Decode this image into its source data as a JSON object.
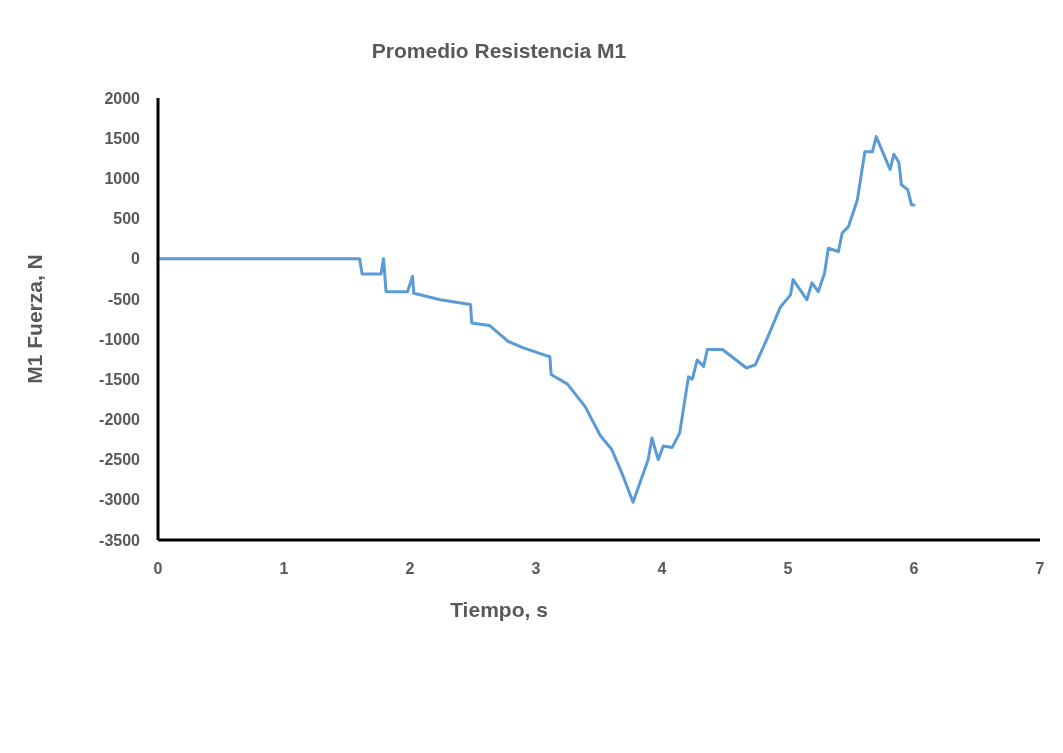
{
  "chart_data": {
    "type": "line",
    "title": "Promedio Resistencia M1",
    "xlabel": "Tiempo, s",
    "ylabel": "M1 Fuerza, N",
    "xlim": [
      0,
      7
    ],
    "xticks": [
      0,
      1,
      2,
      3,
      4,
      5,
      6,
      7
    ],
    "ylim": [
      -3500,
      2000
    ],
    "yticks": [
      -3500,
      -3000,
      -2500,
      -2000,
      -1500,
      -1000,
      -500,
      0,
      500,
      1000,
      1500,
      2000
    ],
    "grid": false,
    "marker": "none",
    "line_style": "solid",
    "series": [
      {
        "color": "#5b9bd5",
        "x": [
          0,
          1.6,
          1.62,
          1.77,
          1.79,
          1.81,
          1.98,
          2.02,
          2.03,
          2.24,
          2.48,
          2.49,
          2.63,
          2.78,
          2.9,
          3.07,
          3.11,
          3.12,
          3.25,
          3.39,
          3.51,
          3.6,
          3.69,
          3.77,
          3.89,
          3.92,
          3.97,
          4.01,
          4.08,
          4.14,
          4.21,
          4.24,
          4.28,
          4.33,
          4.36,
          4.48,
          4.67,
          4.74,
          4.83,
          4.94,
          5.02,
          5.04,
          5.15,
          5.19,
          5.24,
          5.29,
          5.32,
          5.4,
          5.43,
          5.48,
          5.55,
          5.61,
          5.67,
          5.7,
          5.81,
          5.84,
          5.88,
          5.9,
          5.95,
          5.98,
          6.0
        ],
        "values": [
          0,
          0,
          -190,
          -190,
          0,
          -410,
          -410,
          -220,
          -430,
          -510,
          -570,
          -800,
          -830,
          -1030,
          -1110,
          -1200,
          -1220,
          -1440,
          -1560,
          -1840,
          -2200,
          -2370,
          -2700,
          -3030,
          -2500,
          -2230,
          -2500,
          -2330,
          -2350,
          -2170,
          -1470,
          -1500,
          -1260,
          -1340,
          -1130,
          -1130,
          -1360,
          -1320,
          -1010,
          -600,
          -450,
          -260,
          -510,
          -300,
          -410,
          -180,
          130,
          90,
          320,
          400,
          730,
          1330,
          1330,
          1520,
          1110,
          1300,
          1200,
          920,
          860,
          670,
          670
        ]
      }
    ]
  }
}
